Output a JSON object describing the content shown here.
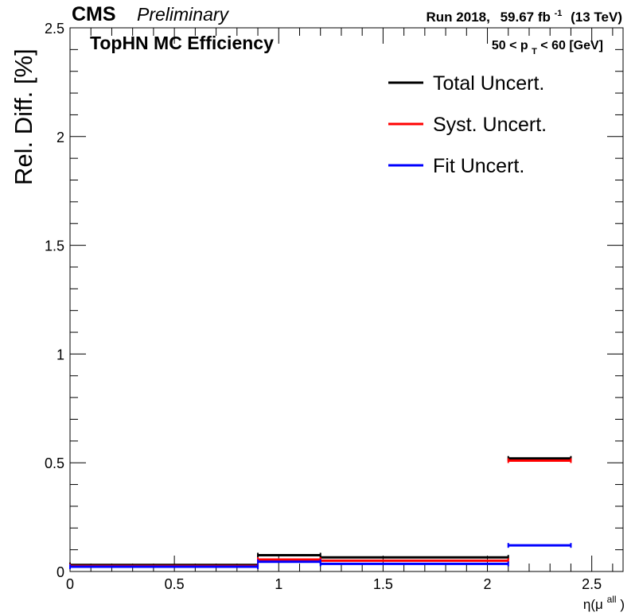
{
  "header": {
    "experiment": "CMS",
    "status": "Preliminary",
    "run": "Run 2018,",
    "lumi_value": "59.67 fb",
    "lumi_exponent": "-1",
    "energy": "(13 TeV)"
  },
  "plot_labels": {
    "title": "TopHN MC Efficiency",
    "pt_range_prefix": "50 < p",
    "pt_range_sub": "T",
    "pt_range_suffix": " < 60 [GeV]"
  },
  "colors": {
    "total": "#000000",
    "syst": "#ff0000",
    "fit": "#0000ff"
  },
  "chart_data": {
    "type": "line",
    "style": "step",
    "xlabel_base": "η(μ",
    "xlabel_sup": "all",
    "xlabel_end": ")",
    "ylabel": "Rel. Diff. [%]",
    "xlim": [
      0,
      2.65
    ],
    "ylim": [
      0,
      2.5
    ],
    "bins": [
      [
        0,
        0.9
      ],
      [
        0.9,
        1.2
      ],
      [
        1.2,
        2.1
      ],
      [
        2.1,
        2.4
      ]
    ],
    "xticks": [
      {
        "v": 0,
        "label": "0"
      },
      {
        "v": 0.5,
        "label": "0.5"
      },
      {
        "v": 1,
        "label": "1"
      },
      {
        "v": 1.5,
        "label": "1.5"
      },
      {
        "v": 2,
        "label": "2"
      },
      {
        "v": 2.5,
        "label": "2.5"
      }
    ],
    "yticks": [
      {
        "v": 0,
        "label": "0"
      },
      {
        "v": 0.5,
        "label": "0.5"
      },
      {
        "v": 1,
        "label": "1"
      },
      {
        "v": 1.5,
        "label": "1.5"
      },
      {
        "v": 2,
        "label": "2"
      },
      {
        "v": 2.5,
        "label": "2.5"
      }
    ],
    "grid": false,
    "legend_position": "top-right",
    "series": [
      {
        "key": "total",
        "name": "Total Uncert.",
        "values": [
          0.03,
          0.075,
          0.065,
          0.52
        ]
      },
      {
        "key": "syst",
        "name": "Syst. Uncert.",
        "values": [
          0.025,
          0.055,
          0.05,
          0.51
        ]
      },
      {
        "key": "fit",
        "name": "Fit Uncert.",
        "values": [
          0.022,
          0.045,
          0.035,
          0.12
        ]
      }
    ]
  }
}
